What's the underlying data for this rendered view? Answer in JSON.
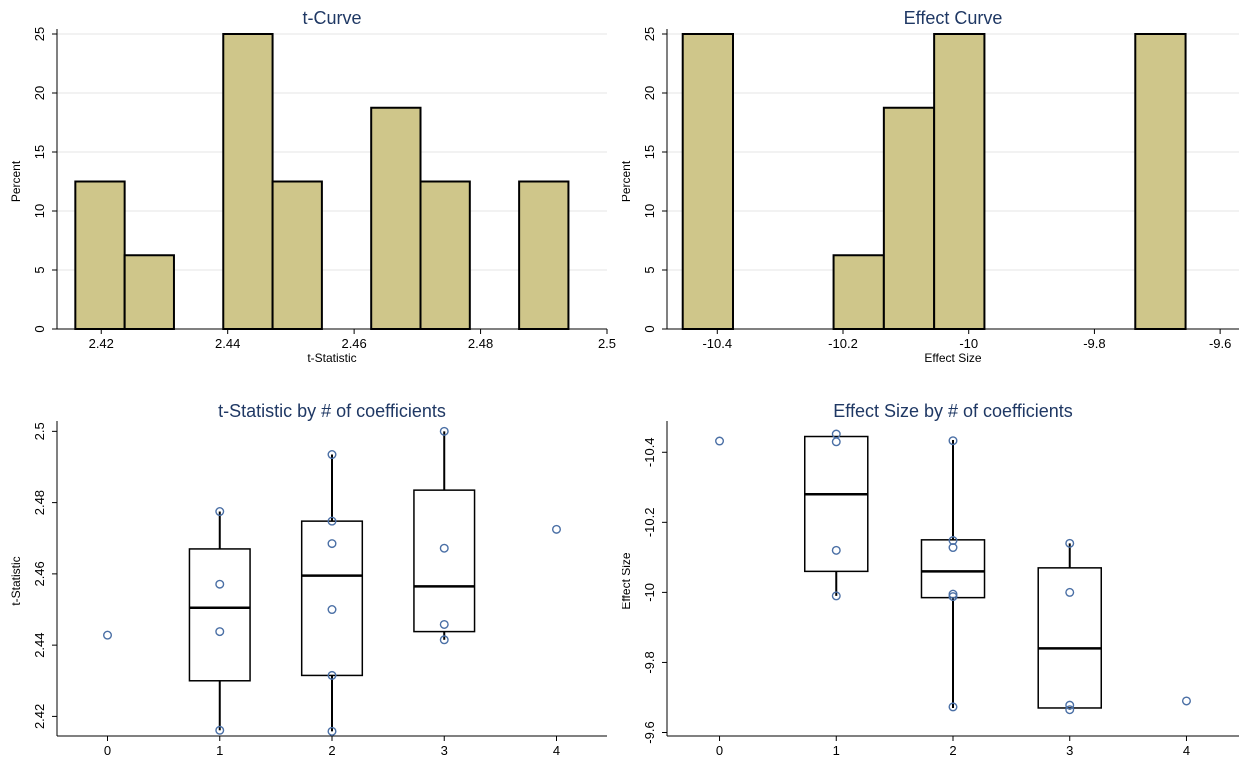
{
  "colors": {
    "bar_fill": "#cfc68a",
    "bar_stroke": "#000000",
    "title": "#1f3864",
    "grid": "#e6e6e6",
    "marker": "#4a6fa5",
    "axis": "#000000"
  },
  "chart_data": [
    {
      "type": "bar",
      "subtype": "histogram",
      "title": "t-Curve",
      "xlabel": "t-Statistic",
      "ylabel": "Percent",
      "xlim": [
        2.413,
        2.5
      ],
      "ylim": [
        0,
        25
      ],
      "xticks": [
        2.42,
        2.44,
        2.46,
        2.48,
        2.5
      ],
      "xtick_labels": [
        "2.42",
        "2.44",
        "2.46",
        "2.48",
        "2.5"
      ],
      "yticks": [
        0,
        5,
        10,
        15,
        20,
        25
      ],
      "ytick_labels": [
        "0",
        "5",
        "10",
        "15",
        "20",
        "25"
      ],
      "grid": true,
      "bins": [
        {
          "start": 2.4159,
          "end": 2.4237,
          "value": 12.5
        },
        {
          "start": 2.4237,
          "end": 2.4315,
          "value": 6.25
        },
        {
          "start": 2.4393,
          "end": 2.4471,
          "value": 25
        },
        {
          "start": 2.4471,
          "end": 2.4549,
          "value": 12.5
        },
        {
          "start": 2.4627,
          "end": 2.4705,
          "value": 18.75
        },
        {
          "start": 2.4705,
          "end": 2.4783,
          "value": 12.5
        },
        {
          "start": 2.4861,
          "end": 2.4939,
          "value": 12.5
        }
      ]
    },
    {
      "type": "bar",
      "subtype": "histogram",
      "title": "Effect Curve",
      "xlabel": "Effect Size",
      "ylabel": "Percent",
      "xlim": [
        -10.48,
        -9.57
      ],
      "ylim": [
        0,
        25
      ],
      "xticks": [
        -10.4,
        -10.2,
        -10,
        -9.8,
        -9.6
      ],
      "xtick_labels": [
        "-10.4",
        "-10.2",
        "-10",
        "-9.8",
        "-9.6"
      ],
      "yticks": [
        0,
        5,
        10,
        15,
        20,
        25
      ],
      "ytick_labels": [
        "0",
        "5",
        "10",
        "15",
        "20",
        "25"
      ],
      "grid": true,
      "bins": [
        {
          "start": -10.455,
          "end": -10.375,
          "value": 25
        },
        {
          "start": -10.215,
          "end": -10.135,
          "value": 6.25
        },
        {
          "start": -10.135,
          "end": -10.055,
          "value": 18.75
        },
        {
          "start": -10.055,
          "end": -9.975,
          "value": 25
        },
        {
          "start": -9.735,
          "end": -9.655,
          "value": 25
        }
      ]
    },
    {
      "type": "box",
      "title": "t-Statistic by # of coefficients",
      "xlabel": "",
      "ylabel": "t-Statistic",
      "xlim": [
        -0.45,
        4.45
      ],
      "ylim": [
        2.4145,
        2.5015
      ],
      "xticks": [
        0,
        1,
        2,
        3,
        4
      ],
      "xtick_labels": [
        "0",
        "1",
        "2",
        "3",
        "4"
      ],
      "yticks": [
        2.42,
        2.44,
        2.46,
        2.48,
        2.5
      ],
      "ytick_labels": [
        "2.42",
        "2.44",
        "2.46",
        "2.48",
        "2.5"
      ],
      "grid": false,
      "boxes": [
        {
          "x": 1,
          "q1": 2.43,
          "median": 2.4505,
          "q3": 2.467,
          "whisker_low": 2.4161,
          "whisker_high": 2.4775
        },
        {
          "x": 2,
          "q1": 2.4315,
          "median": 2.4595,
          "q3": 2.4748,
          "whisker_low": 2.4158,
          "whisker_high": 2.4935
        },
        {
          "x": 3,
          "q1": 2.4438,
          "median": 2.4565,
          "q3": 2.4835,
          "whisker_low": 2.4415,
          "whisker_high": 2.5
        }
      ],
      "points": [
        {
          "x": 0,
          "y": 2.4428
        },
        {
          "x": 1,
          "y": 2.4775
        },
        {
          "x": 1,
          "y": 2.4571
        },
        {
          "x": 1,
          "y": 2.4438
        },
        {
          "x": 1,
          "y": 2.4161
        },
        {
          "x": 2,
          "y": 2.4935
        },
        {
          "x": 2,
          "y": 2.4748
        },
        {
          "x": 2,
          "y": 2.4685
        },
        {
          "x": 2,
          "y": 2.45
        },
        {
          "x": 2,
          "y": 2.4315
        },
        {
          "x": 2,
          "y": 2.4158
        },
        {
          "x": 3,
          "y": 2.5
        },
        {
          "x": 3,
          "y": 2.4672
        },
        {
          "x": 3,
          "y": 2.4458
        },
        {
          "x": 3,
          "y": 2.4415
        },
        {
          "x": 4,
          "y": 2.4725
        }
      ]
    },
    {
      "type": "box",
      "title": "Effect Size by # of coefficients",
      "xlabel": "",
      "ylabel": "Effect Size",
      "xlim": [
        -0.45,
        4.45
      ],
      "ylim": [
        -9.59,
        -10.475
      ],
      "xticks": [
        0,
        1,
        2,
        3,
        4
      ],
      "xtick_labels": [
        "0",
        "1",
        "2",
        "3",
        "4"
      ],
      "yticks": [
        -9.6,
        -9.8,
        -10,
        -10.2,
        -10.4
      ],
      "ytick_labels": [
        "-9.6",
        "-9.8",
        "-10",
        "-10.2",
        "-10.4"
      ],
      "grid": false,
      "boxes": [
        {
          "x": 1,
          "q1": -10.445,
          "median": -10.28,
          "q3": -10.06,
          "whisker_low": -10.445,
          "whisker_high": -9.99
        },
        {
          "x": 2,
          "q1": -10.15,
          "median": -10.06,
          "q3": -9.985,
          "whisker_low": -10.435,
          "whisker_high": -9.67
        },
        {
          "x": 3,
          "q1": -10.07,
          "median": -9.84,
          "q3": -9.67,
          "whisker_low": -10.14,
          "whisker_high": -9.665
        }
      ],
      "points": [
        {
          "x": 0,
          "y": -10.432
        },
        {
          "x": 1,
          "y": -9.99
        },
        {
          "x": 1,
          "y": -10.12
        },
        {
          "x": 1,
          "y": -10.43
        },
        {
          "x": 1,
          "y": -10.452
        },
        {
          "x": 2,
          "y": -9.673
        },
        {
          "x": 2,
          "y": -9.988
        },
        {
          "x": 2,
          "y": -9.995
        },
        {
          "x": 2,
          "y": -10.128
        },
        {
          "x": 2,
          "y": -10.148
        },
        {
          "x": 2,
          "y": -10.433
        },
        {
          "x": 3,
          "y": -9.665
        },
        {
          "x": 3,
          "y": -9.678
        },
        {
          "x": 3,
          "y": -10.0
        },
        {
          "x": 3,
          "y": -10.14
        },
        {
          "x": 4,
          "y": -9.69
        }
      ]
    }
  ]
}
